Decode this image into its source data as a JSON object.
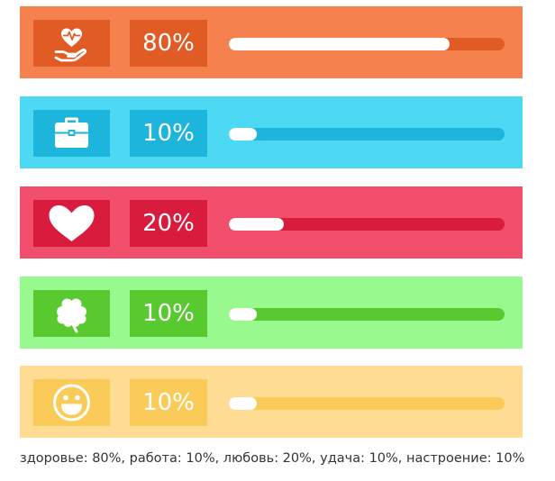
{
  "stats": [
    {
      "key": "health",
      "icon": "heart-in-hand-icon",
      "percent_label": "80%",
      "level": 0.8,
      "colors": {
        "bg": "#F5814F",
        "box": "#E15B24",
        "track": "#E15B24"
      }
    },
    {
      "key": "work",
      "icon": "briefcase-icon",
      "percent_label": "10%",
      "level": 0.1,
      "colors": {
        "bg": "#4DD9F3",
        "box": "#1DB5DC",
        "track": "#1DB5DC"
      }
    },
    {
      "key": "love",
      "icon": "heart-icon",
      "percent_label": "20%",
      "level": 0.2,
      "colors": {
        "bg": "#F24F6C",
        "box": "#D91B3D",
        "track": "#D91B3D"
      }
    },
    {
      "key": "luck",
      "icon": "clover-icon",
      "percent_label": "10%",
      "level": 0.1,
      "colors": {
        "bg": "#98FA8E",
        "box": "#58C92E",
        "track": "#58C92E"
      }
    },
    {
      "key": "mood",
      "icon": "smiley-icon",
      "percent_label": "10%",
      "level": 0.1,
      "colors": {
        "bg": "#FEDC94",
        "box": "#FBCB5A",
        "track": "#FBCB5A"
      }
    }
  ],
  "caption": "здоровье: 80%, работа: 10%, любовь: 20%, удача: 10%, настроение: 10%"
}
